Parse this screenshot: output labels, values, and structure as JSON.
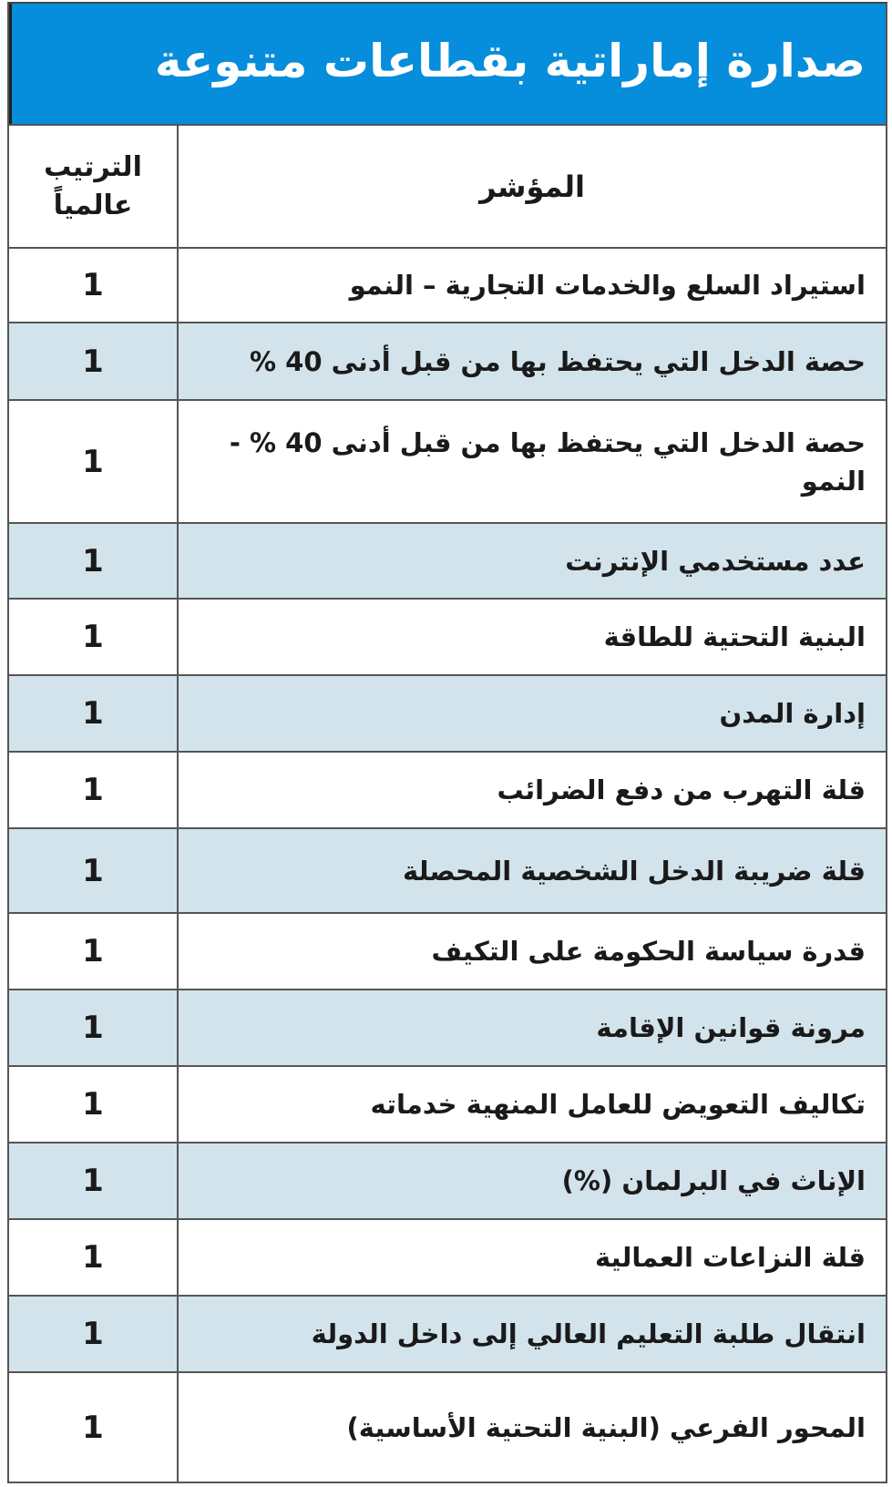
{
  "title": "صدارة إماراتية بقطاعات متنوعة",
  "columns": {
    "indicator": "المؤشر",
    "rank": "الترتيب عالمياً"
  },
  "rows": [
    {
      "indicator": "استيراد السلع والخدمات التجارية – النمو",
      "rank": "1"
    },
    {
      "indicator": "حصة الدخل التي يحتفظ بها من قبل أدنى 40 %",
      "rank": "1"
    },
    {
      "indicator": "حصة الدخل التي يحتفظ بها من قبل أدنى 40 % - النمو",
      "rank": "1"
    },
    {
      "indicator": "عدد مستخدمي الإنترنت",
      "rank": "1"
    },
    {
      "indicator": "البنية التحتية للطاقة",
      "rank": "1"
    },
    {
      "indicator": "إدارة المدن",
      "rank": "1"
    },
    {
      "indicator": "قلة التهرب من دفع الضرائب",
      "rank": "1"
    },
    {
      "indicator": "قلة ضريبة الدخل الشخصية المحصلة",
      "rank": "1"
    },
    {
      "indicator": "قدرة سياسة الحكومة على التكيف",
      "rank": "1"
    },
    {
      "indicator": "مرونة قوانين الإقامة",
      "rank": "1"
    },
    {
      "indicator": "تكاليف التعويض للعامل المنهية خدماته",
      "rank": "1"
    },
    {
      "indicator": "الإناث في البرلمان (%)",
      "rank": "1"
    },
    {
      "indicator": "قلة النزاعات العمالية",
      "rank": "1"
    },
    {
      "indicator": "انتقال طلبة التعليم العالي إلى داخل الدولة",
      "rank": "1"
    },
    {
      "indicator": "المحور الفرعي (البنية التحتية الأساسية)",
      "rank": "1"
    }
  ],
  "colors": {
    "header": "#068ddb",
    "alt_row": "#d2e3eb",
    "text": "#1a1a1a"
  }
}
